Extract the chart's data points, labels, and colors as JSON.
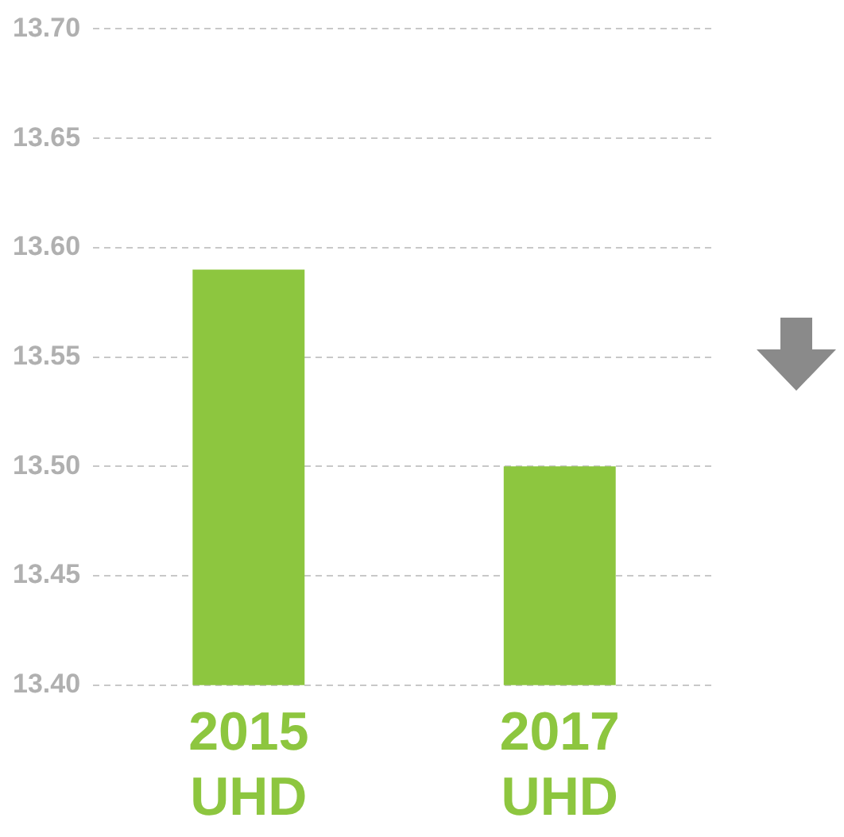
{
  "chart_data": {
    "type": "bar",
    "categories": [
      "2015 UHD",
      "2017 UHD"
    ],
    "values": [
      13.59,
      13.5
    ],
    "color": "#8dc63f",
    "ylim": [
      13.4,
      13.7
    ],
    "yticks": [
      {
        "value": 13.4,
        "label": "13.40"
      },
      13.45,
      {
        "value": 13.5,
        "label": "13.50"
      },
      13.55,
      {
        "value": 13.6,
        "label": "13.60"
      },
      13.65,
      {
        "value": 13.7,
        "label": "13.70"
      }
    ],
    "grid": "y"
  }
}
